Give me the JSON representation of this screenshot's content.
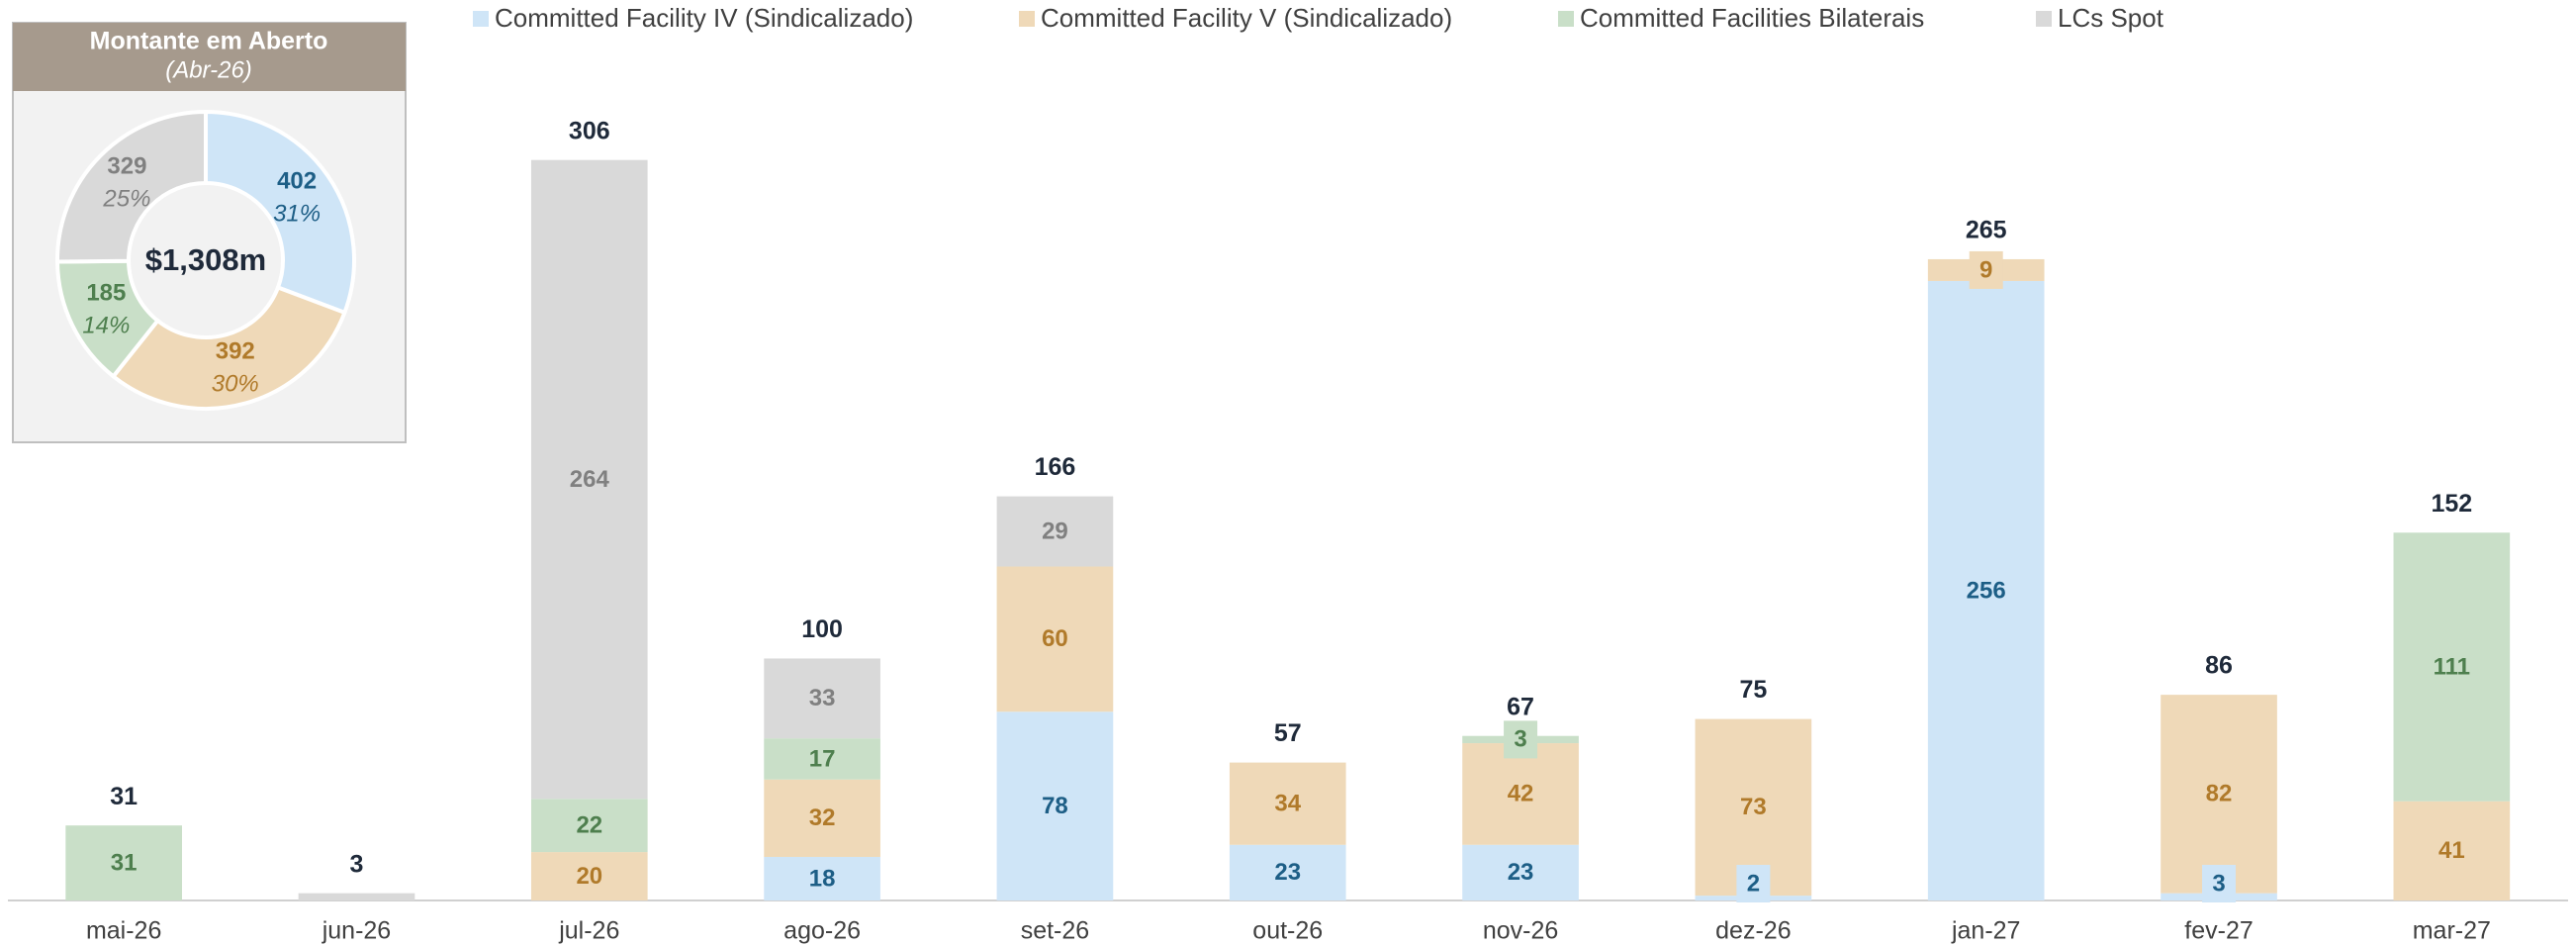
{
  "chart_data": [
    {
      "type": "bar",
      "stacked": true,
      "categories": [
        "mai-26",
        "jun-26",
        "jul-26",
        "ago-26",
        "set-26",
        "out-26",
        "nov-26",
        "dez-26",
        "jan-27",
        "fev-27",
        "mar-27"
      ],
      "series": [
        {
          "name": "Committed Facility IV (Sindicalizado)",
          "color": "#cfe5f7",
          "label_color": "#1d5e86",
          "values": [
            null,
            null,
            null,
            18,
            78,
            23,
            23,
            2,
            256,
            3,
            null
          ]
        },
        {
          "name": "Committed Facility V (Sindicalizado)",
          "color": "#efd9b8",
          "label_color": "#b07a2a",
          "values": [
            null,
            null,
            20,
            32,
            60,
            34,
            42,
            73,
            9,
            82,
            41
          ]
        },
        {
          "name": "Committed Facilities Bilaterais",
          "color": "#c9dfc8",
          "label_color": "#4e7f4e",
          "values": [
            31,
            null,
            22,
            17,
            null,
            null,
            3,
            null,
            null,
            null,
            111
          ]
        },
        {
          "name": "LCs Spot",
          "color": "#d9d9d9",
          "label_color": "#808080",
          "values": [
            null,
            3,
            264,
            33,
            29,
            null,
            null,
            null,
            null,
            null,
            null
          ],
          "value_labels": [
            null,
            null,
            "264",
            "33",
            "29",
            null,
            null,
            null,
            null,
            null,
            null
          ]
        }
      ],
      "totals": [
        31,
        3,
        306,
        100,
        166,
        57,
        67,
        75,
        265,
        86,
        152
      ],
      "ylim": [
        0,
        330
      ],
      "grid": false,
      "legend": "top"
    },
    {
      "type": "pie",
      "donut": true,
      "title": "Montante em Aberto",
      "subtitle": "(Abr-26)",
      "center_label": "$1,308m",
      "values": [
        402,
        392,
        185,
        329
      ],
      "percent_labels": [
        "31%",
        "30%",
        "14%",
        "25%"
      ],
      "colors": [
        "#cfe5f7",
        "#efd9b8",
        "#c9dfc8",
        "#d9d9d9"
      ],
      "label_colors": [
        "#1d5e86",
        "#b07a2a",
        "#4e7f4e",
        "#808080"
      ]
    }
  ]
}
